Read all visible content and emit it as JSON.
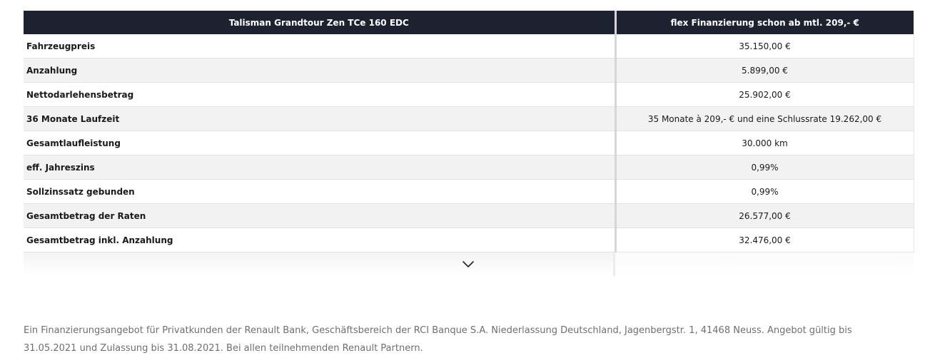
{
  "table": {
    "header": {
      "col1": "Talisman Grandtour Zen TCe 160 EDC",
      "col2": "flex Finanzierung schon ab mtl. 209,- €"
    },
    "rows": [
      {
        "label": "Fahrzeugpreis",
        "value": "35.150,00 €"
      },
      {
        "label": "Anzahlung",
        "value": "5.899,00 €"
      },
      {
        "label": "Nettodarlehensbetrag",
        "value": "25.902,00 €"
      },
      {
        "label": "36 Monate Laufzeit",
        "value": "35 Monate à 209,- € und eine Schlussrate 19.262,00 €"
      },
      {
        "label": "Gesamtlaufleistung",
        "value": "30.000 km"
      },
      {
        "label": "eff. Jahreszins",
        "value": "0,99%"
      },
      {
        "label": "Sollzinssatz gebunden",
        "value": "0,99%"
      },
      {
        "label": "Gesamtbetrag der Raten",
        "value": "26.577,00 €"
      },
      {
        "label": "Gesamtbetrag inkl. Anzahlung",
        "value": "32.476,00 €"
      }
    ],
    "expand_icon": "chevron-down-icon"
  },
  "footnote": "Ein Finanzierungsangebot für Privatkunden der Renault Bank, Geschäftsbereich der RCI Banque S.A. Niederlassung Deutschland, Jagenbergstr. 1, 41468 Neuss. Angebot gültig bis 31.05.2021 und Zulassung bis 31.08.2021. Bei allen teilnehmenden Renault Partnern.",
  "colors": {
    "header_bg": "#1e2130",
    "header_text": "#ffffff",
    "row_alt_bg": "#f2f2f2",
    "footnote_text": "#6f6f6f"
  }
}
